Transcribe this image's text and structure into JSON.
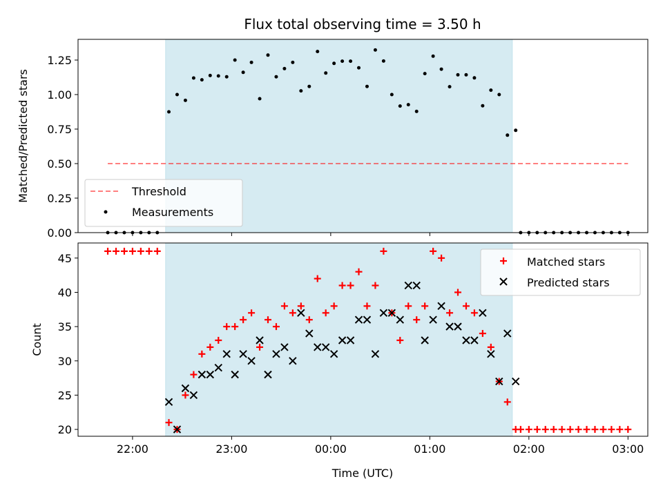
{
  "chart_data": [
    {
      "type": "scatter",
      "title": "Flux total observing time = 3.50 h",
      "ylabel": "Matched/Predicted stars",
      "xlabel": "",
      "xlim": [
        "21:27",
        "03:12"
      ],
      "ylim": [
        0,
        1.4
      ],
      "y_ticks": [
        "0.00",
        "0.25",
        "0.50",
        "0.75",
        "1.00",
        "1.25"
      ],
      "shaded_span": [
        "22:20",
        "01:50"
      ],
      "legend": [
        "Threshold",
        "Measurements"
      ],
      "legend_position": "lower-left",
      "threshold": {
        "name": "Threshold",
        "y": 0.5,
        "x_range": [
          "21:45",
          "03:00"
        ]
      },
      "series": [
        {
          "name": "Measurements",
          "x": [
            "21:45",
            "21:50",
            "21:55",
            "22:00",
            "22:05",
            "22:10",
            "22:15",
            "22:22",
            "22:27",
            "22:32",
            "22:37",
            "22:42",
            "22:47",
            "22:52",
            "22:57",
            "23:02",
            "23:07",
            "23:12",
            "23:17",
            "23:22",
            "23:27",
            "23:32",
            "23:37",
            "23:42",
            "23:47",
            "23:52",
            "23:57",
            "00:02",
            "00:07",
            "00:12",
            "00:17",
            "00:22",
            "00:27",
            "00:32",
            "00:37",
            "00:42",
            "00:47",
            "00:52",
            "00:57",
            "01:02",
            "01:07",
            "01:12",
            "01:17",
            "01:22",
            "01:27",
            "01:32",
            "01:37",
            "01:42",
            "01:47",
            "01:52",
            "01:55",
            "02:00",
            "02:05",
            "02:10",
            "02:15",
            "02:20",
            "02:25",
            "02:30",
            "02:35",
            "02:40",
            "02:45",
            "02:50",
            "02:55",
            "03:00"
          ],
          "y": [
            0,
            0,
            0,
            0,
            0,
            0,
            0,
            0.875,
            1.0,
            0.958,
            1.12,
            1.107,
            1.138,
            1.135,
            1.129,
            1.25,
            1.161,
            1.233,
            0.97,
            1.286,
            1.129,
            1.188,
            1.233,
            1.027,
            1.059,
            1.312,
            1.156,
            1.226,
            1.242,
            1.242,
            1.194,
            1.059,
            1.323,
            1.243,
            1.0,
            0.917,
            0.927,
            0.878,
            1.152,
            1.278,
            1.184,
            1.057,
            1.143,
            1.143,
            1.121,
            0.919,
            1.032,
            1.0,
            0.706,
            0.741,
            0,
            0,
            0,
            0,
            0,
            0,
            0,
            0,
            0,
            0,
            0,
            0,
            0,
            0
          ]
        }
      ]
    },
    {
      "type": "scatter",
      "title": "",
      "ylabel": "Count",
      "xlabel": "Time (UTC)",
      "xlim": [
        "21:27",
        "03:12"
      ],
      "ylim": [
        19,
        47.2
      ],
      "x_ticks": [
        "22:00",
        "23:00",
        "00:00",
        "01:00",
        "02:00",
        "03:00"
      ],
      "y_ticks": [
        "20",
        "25",
        "30",
        "35",
        "40",
        "45"
      ],
      "shaded_span": [
        "22:20",
        "01:50"
      ],
      "legend": [
        "Matched stars",
        "Predicted stars"
      ],
      "legend_position": "top-right",
      "series": [
        {
          "name": "Matched stars",
          "x": [
            "21:45",
            "21:50",
            "21:55",
            "22:00",
            "22:05",
            "22:10",
            "22:15",
            "22:22",
            "22:27",
            "22:32",
            "22:37",
            "22:42",
            "22:47",
            "22:52",
            "22:57",
            "23:02",
            "23:07",
            "23:12",
            "23:17",
            "23:22",
            "23:27",
            "23:32",
            "23:37",
            "23:42",
            "23:47",
            "23:52",
            "23:57",
            "00:02",
            "00:07",
            "00:12",
            "00:17",
            "00:22",
            "00:27",
            "00:32",
            "00:37",
            "00:42",
            "00:47",
            "00:52",
            "00:57",
            "01:02",
            "01:07",
            "01:12",
            "01:17",
            "01:22",
            "01:27",
            "01:32",
            "01:37",
            "01:42",
            "01:47",
            "01:52",
            "01:55",
            "02:00",
            "02:05",
            "02:10",
            "02:15",
            "02:20",
            "02:25",
            "02:30",
            "02:35",
            "02:40",
            "02:45",
            "02:50",
            "02:55",
            "03:00"
          ],
          "y": [
            46,
            46,
            46,
            46,
            46,
            46,
            46,
            21,
            20,
            25,
            28,
            31,
            32,
            33,
            35,
            35,
            36,
            37,
            32,
            36,
            35,
            38,
            37,
            38,
            36,
            42,
            37,
            38,
            41,
            41,
            43,
            38,
            41,
            46,
            37,
            33,
            38,
            36,
            38,
            46,
            45,
            37,
            40,
            38,
            37,
            34,
            32,
            27,
            24,
            20,
            20,
            20,
            20,
            20,
            20,
            20,
            20,
            20,
            20,
            20,
            20,
            20,
            20,
            20
          ]
        },
        {
          "name": "Predicted stars",
          "x": [
            "22:22",
            "22:27",
            "22:32",
            "22:37",
            "22:42",
            "22:47",
            "22:52",
            "22:57",
            "23:02",
            "23:07",
            "23:12",
            "23:17",
            "23:22",
            "23:27",
            "23:32",
            "23:37",
            "23:42",
            "23:47",
            "23:52",
            "23:57",
            "00:02",
            "00:07",
            "00:12",
            "00:17",
            "00:22",
            "00:27",
            "00:32",
            "00:37",
            "00:42",
            "00:47",
            "00:52",
            "00:57",
            "01:02",
            "01:07",
            "01:12",
            "01:17",
            "01:22",
            "01:27",
            "01:32",
            "01:37",
            "01:42",
            "01:47",
            "01:52"
          ],
          "y": [
            24,
            20,
            26,
            25,
            28,
            28,
            29,
            31,
            28,
            31,
            30,
            33,
            28,
            31,
            32,
            30,
            37,
            34,
            32,
            32,
            31,
            33,
            33,
            36,
            36,
            31,
            37,
            37,
            36,
            41,
            41,
            33,
            36,
            38,
            35,
            35,
            33,
            33,
            37,
            31,
            27,
            34,
            27
          ]
        }
      ]
    }
  ]
}
